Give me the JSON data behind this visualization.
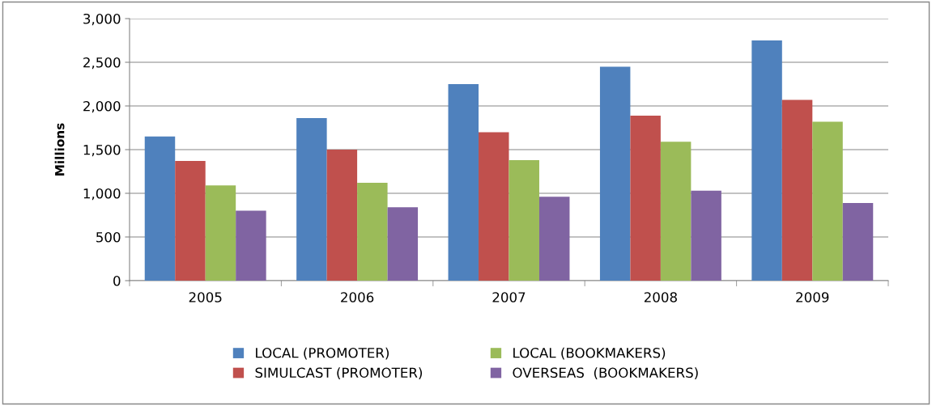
{
  "chart_data": {
    "type": "bar",
    "ylabel": "Millions",
    "categories": [
      "2005",
      "2006",
      "2007",
      "2008",
      "2009"
    ],
    "series": [
      {
        "name": "LOCAL (PROMOTER)",
        "color": "#4f81bd",
        "values": [
          1650,
          1860,
          2250,
          2450,
          2750
        ]
      },
      {
        "name": "SIMULCAST (PROMOTER)",
        "color": "#c0504d",
        "values": [
          1370,
          1500,
          1700,
          1890,
          2070
        ]
      },
      {
        "name": "LOCAL (BOOKMAKERS)",
        "color": "#9bbb59",
        "values": [
          1090,
          1120,
          1380,
          1590,
          1820
        ]
      },
      {
        "name": "OVERSEAS  (BOOKMAKERS)",
        "color": "#8064a2",
        "values": [
          800,
          840,
          960,
          1030,
          890
        ]
      }
    ],
    "ylim": [
      0,
      3000
    ],
    "yticks": [
      0,
      500,
      {
        "value": 1000,
        "label": "1,000"
      },
      {
        "value": 1500,
        "label": "1,500"
      },
      {
        "value": 2000,
        "label": "2,000"
      },
      {
        "value": 2500,
        "label": "2,500"
      },
      {
        "value": 3000,
        "label": "3,000"
      }
    ],
    "grid": "y",
    "legend": "bottom"
  }
}
